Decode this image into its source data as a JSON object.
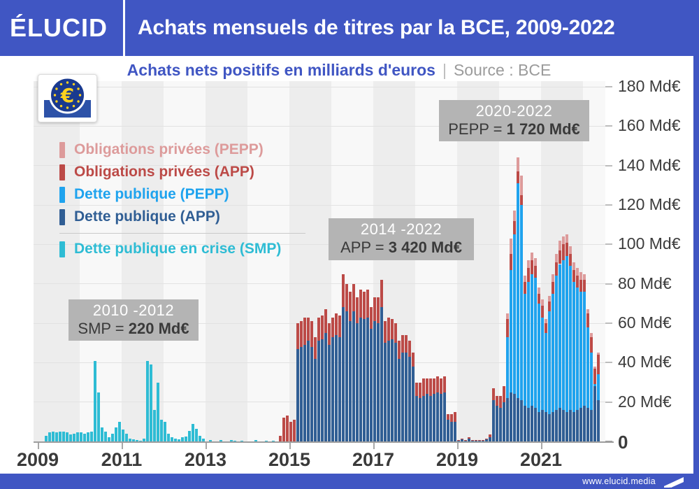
{
  "header": {
    "brand": "ÉLUCID",
    "title": "Achats mensuels de titres par la BCE, 2009-2022"
  },
  "subtitle": {
    "main": "Achats nets positifs en milliards d'euros",
    "separator": "|",
    "source": "Source : BCE"
  },
  "legend": {
    "items": [
      {
        "key": "pepp_priv",
        "label": "Obligations privées (PEPP)",
        "color": "#DD9B9B"
      },
      {
        "key": "app_priv",
        "label": "Obligations privées (APP)",
        "color": "#BC4A47"
      },
      {
        "key": "pepp_pub",
        "label": "Dette publique (PEPP)",
        "color": "#1FA3EE"
      },
      {
        "key": "app_pub",
        "label": "Dette publique (APP)",
        "color": "#305E94"
      },
      {
        "key": "smp",
        "label": "Dette publique en crise (SMP)",
        "color": "#2EBCD4",
        "divider_before": true
      }
    ]
  },
  "annotations": {
    "smp": {
      "period": "2010 -2012",
      "prefix": "SMP = ",
      "value": "220 Md€"
    },
    "app": {
      "period": "2014 -2022",
      "prefix": "APP = ",
      "value": "3 420 Md€"
    },
    "pepp": {
      "period": "2020-2022",
      "prefix": "PEPP = ",
      "value": "1 720 Md€"
    }
  },
  "footer": {
    "url": "www.elucid.media"
  },
  "chart_data": {
    "type": "bar",
    "stacked": true,
    "title": "Achats mensuels de titres par la BCE, 2009-2022",
    "subtitle": "Achats nets positifs en milliards d'euros",
    "source": "BCE",
    "unit": "Md€",
    "ylim": [
      0,
      180
    ],
    "y_ticks": [
      {
        "value": 180,
        "label": "180 Md€"
      },
      {
        "value": 160,
        "label": "160 Md€"
      },
      {
        "value": 140,
        "label": "140 Md€"
      },
      {
        "value": 120,
        "label": "120 Md€"
      },
      {
        "value": 100,
        "label": "100 Md€"
      },
      {
        "value": 80,
        "label": "80 Md€"
      },
      {
        "value": 60,
        "label": "60 Md€"
      },
      {
        "value": 40,
        "label": "40 Md€"
      },
      {
        "value": 20,
        "label": "20 Md€"
      },
      {
        "value": 0,
        "label": "0"
      }
    ],
    "x_tick_years": [
      2009,
      2011,
      2013,
      2015,
      2017,
      2019,
      2021
    ],
    "x_start_month": "2009-03",
    "x_end_month": "2022-05",
    "program_totals": {
      "SMP": "220 Md€",
      "APP": "3 420 Md€",
      "PEPP": "1 720 Md€"
    },
    "stack_order": [
      "smp",
      "app_pub",
      "pepp_pub",
      "app_priv",
      "pepp_priv"
    ],
    "series": [
      {
        "key": "smp",
        "name": "Dette publique en crise (SMP)",
        "color": "#2EBCD4",
        "start_month_index": 0,
        "values": [
          3,
          4.5,
          5,
          4.5,
          5,
          5,
          4.5,
          3.5,
          4,
          4.5,
          4.5,
          4,
          4.5,
          5,
          41,
          25,
          7,
          5,
          2,
          4,
          7,
          10,
          6,
          4,
          1.5,
          1,
          0.8,
          0.5,
          1.5,
          41,
          39,
          16,
          30,
          11,
          10,
          4,
          2,
          1.5,
          1.2,
          2,
          2.5,
          5.5,
          9,
          6.5,
          3,
          1.5,
          0,
          0.8,
          0,
          0,
          0.6,
          0,
          0,
          0.8,
          0.5,
          0,
          0.4,
          0,
          0,
          0,
          0.6,
          0,
          0,
          0.4,
          0,
          0.3
        ]
      },
      {
        "key": "app_pub",
        "name": "Dette publique (APP)",
        "color": "#305E94",
        "start_month_index": 72,
        "values": [
          47,
          48,
          49,
          51,
          48,
          42,
          51,
          52,
          55,
          49,
          53,
          54,
          53,
          68,
          66,
          61,
          66,
          60,
          63,
          62,
          63,
          57,
          61,
          60,
          68,
          50,
          51,
          52,
          50,
          42,
          45,
          45,
          43,
          38,
          23,
          22,
          23,
          24,
          23,
          24,
          25,
          24,
          25,
          11,
          10,
          10,
          0.5,
          1,
          0.5,
          1.5,
          0.5,
          0.3,
          0.5,
          0.3,
          1,
          2,
          21,
          18,
          17,
          20,
          22,
          25,
          24,
          22,
          21,
          18,
          17,
          18,
          17,
          15,
          16,
          15,
          14,
          15,
          16,
          17,
          16,
          15,
          16,
          15,
          16,
          17,
          18,
          17,
          16,
          28,
          21
        ]
      },
      {
        "key": "pepp_pub",
        "name": "Dette publique (PEPP)",
        "color": "#1FA3EE",
        "start_month_index": 132,
        "values": [
          31,
          62,
          81,
          109,
          99,
          57,
          64,
          67,
          66,
          55,
          47,
          40,
          52,
          60,
          68,
          73,
          76,
          79,
          73,
          66,
          62,
          59,
          58,
          41,
          29,
          1,
          13
        ]
      },
      {
        "key": "app_priv",
        "name": "Obligations privées (APP)",
        "color": "#BC4A47",
        "start_month_index": 67,
        "values": [
          3,
          12,
          13,
          10,
          11,
          13,
          13,
          14,
          12,
          13,
          11,
          12,
          12,
          12,
          11,
          10,
          11,
          11,
          17,
          14,
          15,
          14,
          13,
          14,
          14,
          14,
          11,
          12,
          13,
          14,
          11,
          12,
          10,
          10,
          9,
          9,
          9,
          8,
          7,
          7,
          8,
          9,
          8,
          9,
          8,
          8,
          8,
          8,
          3,
          4,
          5,
          0.3,
          0.5,
          0.3,
          0.5,
          0.3,
          0.2,
          0.3,
          0.2,
          0.5,
          1.5,
          6,
          5,
          6,
          8,
          9,
          8,
          7,
          6,
          5,
          6,
          7,
          7,
          6,
          5,
          6,
          5,
          5,
          6,
          7,
          7,
          8,
          7,
          6,
          6,
          6,
          6,
          6,
          7,
          8,
          8,
          10
        ]
      },
      {
        "key": "pepp_priv",
        "name": "Obligations privées (PEPP)",
        "color": "#DD9B9B",
        "start_month_index": 132,
        "values": [
          3,
          8,
          5,
          7,
          10,
          3,
          4,
          4,
          4,
          3,
          3,
          2,
          3,
          4,
          4,
          5,
          4,
          4,
          4,
          4,
          4,
          4,
          3,
          2,
          2,
          1,
          1
        ]
      }
    ]
  }
}
